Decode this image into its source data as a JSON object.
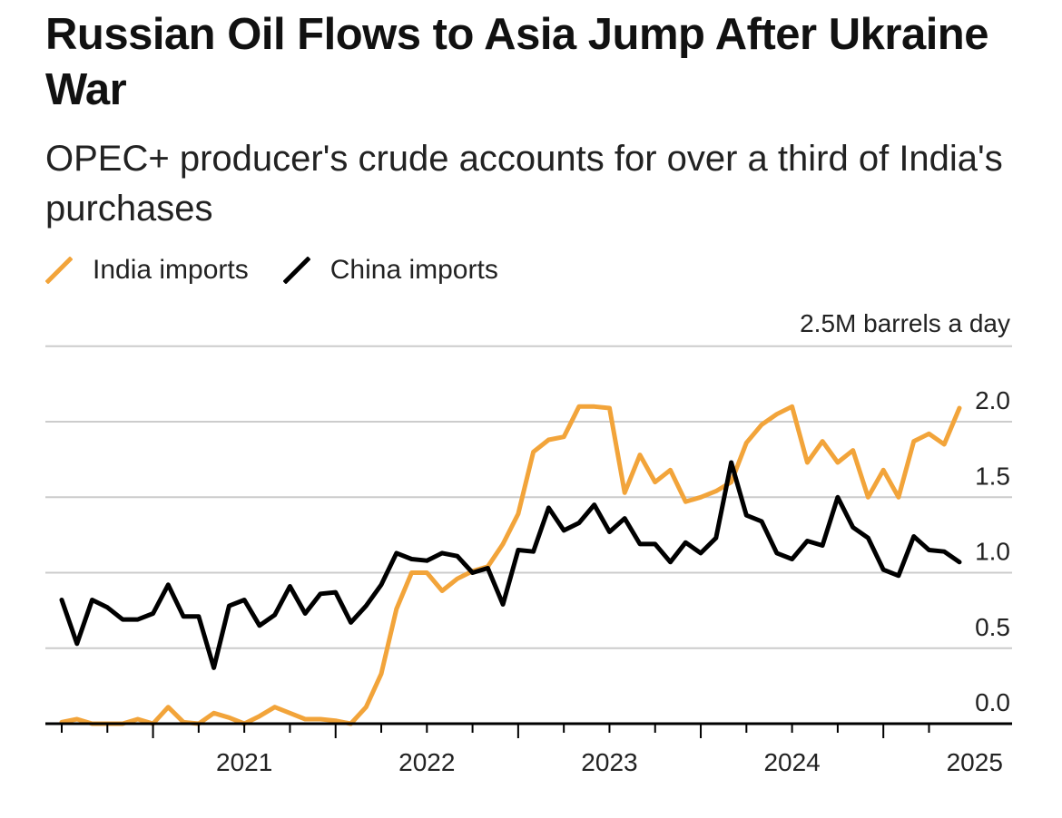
{
  "title": "Russian Oil Flows to Asia Jump After Ukraine War",
  "subtitle": "OPEC+ producer's crude accounts for over a third of India's purchases",
  "legend": {
    "india": "India imports",
    "china": "China imports"
  },
  "colors": {
    "india": "#f2a43a",
    "china": "#000000",
    "grid": "#cccccc",
    "axis": "#000000"
  },
  "chart_data": {
    "type": "line",
    "unit_label": "2.5M barrels a day",
    "ylim": [
      0,
      2.5
    ],
    "y_ticks": [
      "0.0",
      "0.5",
      "1.0",
      "1.5",
      "2.0"
    ],
    "x_tick_labels": [
      "2021",
      "2022",
      "2023",
      "2024",
      "2025"
    ],
    "x_start": "2020-07",
    "x_end": "2025-06",
    "legend_position": "top-left",
    "grid": true,
    "series": [
      {
        "name": "India imports",
        "color": "#f2a43a",
        "values": [
          0.01,
          0.03,
          0.0,
          0.0,
          0.0,
          0.03,
          0.0,
          0.11,
          0.01,
          0.0,
          0.07,
          0.04,
          0.0,
          0.05,
          0.11,
          0.07,
          0.03,
          0.03,
          0.02,
          0.0,
          0.11,
          0.33,
          0.76,
          1.0,
          1.0,
          0.88,
          0.96,
          1.01,
          1.04,
          1.19,
          1.39,
          1.8,
          1.88,
          1.9,
          2.1,
          2.1,
          2.09,
          1.53,
          1.78,
          1.6,
          1.68,
          1.47,
          1.5,
          1.54,
          1.6,
          1.86,
          1.98,
          2.05,
          2.1,
          1.73,
          1.87,
          1.73,
          1.81,
          1.5,
          1.68,
          1.5,
          1.87,
          1.92,
          1.85,
          2.09
        ]
      },
      {
        "name": "China imports",
        "color": "#000000",
        "values": [
          0.82,
          0.53,
          0.82,
          0.77,
          0.69,
          0.69,
          0.73,
          0.92,
          0.71,
          0.71,
          0.37,
          0.78,
          0.82,
          0.65,
          0.72,
          0.91,
          0.73,
          0.86,
          0.87,
          0.67,
          0.78,
          0.92,
          1.13,
          1.09,
          1.08,
          1.13,
          1.11,
          1.0,
          1.03,
          0.79,
          1.15,
          1.14,
          1.43,
          1.28,
          1.33,
          1.45,
          1.27,
          1.36,
          1.19,
          1.19,
          1.07,
          1.2,
          1.13,
          1.23,
          1.73,
          1.38,
          1.34,
          1.13,
          1.09,
          1.21,
          1.18,
          1.5,
          1.3,
          1.23,
          1.02,
          0.98,
          1.24,
          1.15,
          1.14,
          1.07
        ]
      }
    ]
  }
}
